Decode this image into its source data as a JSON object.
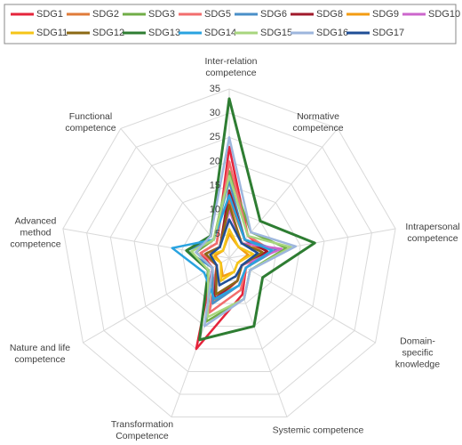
{
  "chart_data": {
    "type": "radar",
    "categories": [
      "Inter-relation competence",
      "Normative competence",
      "Intrapersonal competence",
      "Domain-specific knowledge",
      "Systemic competence",
      "Transformation Competence",
      "Nature and life competence",
      "Advanced method competence",
      "Functional competence"
    ],
    "rlim": [
      0,
      35
    ],
    "rticks": [
      5,
      10,
      15,
      20,
      25,
      30,
      35
    ],
    "grid": true,
    "series": [
      {
        "name": "SDG1",
        "color": "#e5243b",
        "values": [
          23,
          6,
          8,
          4,
          8,
          20,
          4,
          6,
          4
        ]
      },
      {
        "name": "SDG2",
        "color": "#e07b39",
        "values": [
          12,
          5,
          7,
          3,
          5,
          10,
          3,
          5,
          3
        ]
      },
      {
        "name": "SDG3",
        "color": "#70ad47",
        "values": [
          18,
          7,
          12,
          5,
          9,
          14,
          4,
          7,
          5
        ]
      },
      {
        "name": "SDG5",
        "color": "#f26d6d",
        "values": [
          20,
          6,
          9,
          4,
          7,
          12,
          3,
          6,
          4
        ]
      },
      {
        "name": "SDG6",
        "color": "#4a8fc8",
        "values": [
          16,
          5,
          10,
          4,
          6,
          10,
          4,
          9,
          5
        ]
      },
      {
        "name": "SDG8",
        "color": "#a0192b",
        "values": [
          14,
          5,
          8,
          3,
          5,
          9,
          3,
          5,
          3
        ]
      },
      {
        "name": "SDG9",
        "color": "#f39c12",
        "values": [
          5,
          3,
          4,
          2,
          3,
          4,
          2,
          3,
          2
        ]
      },
      {
        "name": "SDG10",
        "color": "#cc66cc",
        "values": [
          10,
          4,
          11,
          3,
          5,
          8,
          3,
          5,
          3
        ]
      },
      {
        "name": "SDG11",
        "color": "#f5c518",
        "values": [
          6,
          3,
          5,
          2,
          3,
          5,
          2,
          4,
          2
        ]
      },
      {
        "name": "SDG12",
        "color": "#8b6914",
        "values": [
          11,
          4,
          7,
          3,
          5,
          8,
          3,
          5,
          3
        ]
      },
      {
        "name": "SDG13",
        "color": "#2e7d32",
        "values": [
          33,
          10,
          18,
          8,
          15,
          18,
          5,
          9,
          6
        ]
      },
      {
        "name": "SDG14",
        "color": "#29a3e0",
        "values": [
          13,
          5,
          9,
          4,
          6,
          9,
          6,
          12,
          5
        ]
      },
      {
        "name": "SDG15",
        "color": "#a8d67e",
        "values": [
          17,
          6,
          13,
          5,
          9,
          13,
          5,
          8,
          5
        ]
      },
      {
        "name": "SDG16",
        "color": "#9db6dd",
        "values": [
          25,
          7,
          14,
          5,
          9,
          15,
          4,
          7,
          6
        ]
      },
      {
        "name": "SDG17",
        "color": "#1f4e96",
        "values": [
          8,
          4,
          6,
          3,
          4,
          6,
          3,
          4,
          3
        ]
      }
    ]
  }
}
